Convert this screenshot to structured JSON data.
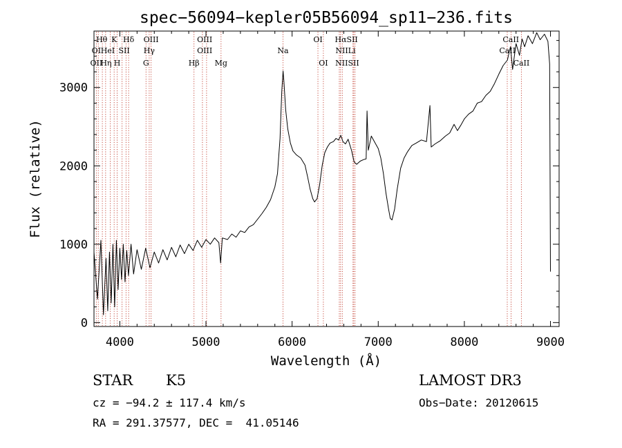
{
  "chart_data": {
    "type": "line",
    "title": "spec−56094−kepler05B56094_sp11−236.fits",
    "xlabel": "Wavelength (Å)",
    "ylabel": "Flux (relative)",
    "xlim": [
      3700,
      9100
    ],
    "ylim": [
      -50,
      3720
    ],
    "x_ticks": [
      4000,
      5000,
      6000,
      7000,
      8000,
      9000
    ],
    "y_ticks": [
      0,
      1000,
      2000,
      3000
    ],
    "series": [
      {
        "name": "spectrum",
        "color": "#000000",
        "points": [
          [
            3700,
            900
          ],
          [
            3740,
            300
          ],
          [
            3780,
            1050
          ],
          [
            3810,
            100
          ],
          [
            3840,
            820
          ],
          [
            3860,
            150
          ],
          [
            3880,
            900
          ],
          [
            3900,
            250
          ],
          [
            3920,
            1000
          ],
          [
            3940,
            200
          ],
          [
            3960,
            1050
          ],
          [
            3980,
            420
          ],
          [
            4000,
            950
          ],
          [
            4020,
            550
          ],
          [
            4040,
            1000
          ],
          [
            4060,
            520
          ],
          [
            4080,
            920
          ],
          [
            4100,
            600
          ],
          [
            4130,
            1000
          ],
          [
            4160,
            620
          ],
          [
            4200,
            930
          ],
          [
            4250,
            680
          ],
          [
            4300,
            950
          ],
          [
            4350,
            700
          ],
          [
            4400,
            900
          ],
          [
            4450,
            760
          ],
          [
            4500,
            930
          ],
          [
            4550,
            800
          ],
          [
            4600,
            960
          ],
          [
            4650,
            840
          ],
          [
            4700,
            990
          ],
          [
            4750,
            880
          ],
          [
            4800,
            1000
          ],
          [
            4850,
            920
          ],
          [
            4900,
            1050
          ],
          [
            4950,
            960
          ],
          [
            5000,
            1060
          ],
          [
            5050,
            1000
          ],
          [
            5100,
            1080
          ],
          [
            5150,
            1020
          ],
          [
            5170,
            760
          ],
          [
            5190,
            1080
          ],
          [
            5250,
            1060
          ],
          [
            5300,
            1130
          ],
          [
            5350,
            1090
          ],
          [
            5400,
            1170
          ],
          [
            5450,
            1150
          ],
          [
            5500,
            1220
          ],
          [
            5550,
            1250
          ],
          [
            5600,
            1320
          ],
          [
            5650,
            1390
          ],
          [
            5700,
            1470
          ],
          [
            5750,
            1570
          ],
          [
            5800,
            1730
          ],
          [
            5830,
            1900
          ],
          [
            5860,
            2350
          ],
          [
            5880,
            2950
          ],
          [
            5895,
            3210
          ],
          [
            5905,
            3080
          ],
          [
            5925,
            2720
          ],
          [
            5950,
            2470
          ],
          [
            5980,
            2290
          ],
          [
            6010,
            2190
          ],
          [
            6050,
            2140
          ],
          [
            6100,
            2100
          ],
          [
            6150,
            2010
          ],
          [
            6180,
            1860
          ],
          [
            6210,
            1700
          ],
          [
            6240,
            1580
          ],
          [
            6260,
            1540
          ],
          [
            6290,
            1580
          ],
          [
            6320,
            1760
          ],
          [
            6350,
            2010
          ],
          [
            6380,
            2170
          ],
          [
            6410,
            2240
          ],
          [
            6440,
            2290
          ],
          [
            6480,
            2310
          ],
          [
            6510,
            2350
          ],
          [
            6540,
            2330
          ],
          [
            6565,
            2390
          ],
          [
            6590,
            2310
          ],
          [
            6620,
            2280
          ],
          [
            6650,
            2340
          ],
          [
            6690,
            2200
          ],
          [
            6720,
            2050
          ],
          [
            6750,
            2020
          ],
          [
            6790,
            2060
          ],
          [
            6830,
            2080
          ],
          [
            6860,
            2090
          ],
          [
            6870,
            2700
          ],
          [
            6885,
            2200
          ],
          [
            6920,
            2380
          ],
          [
            6960,
            2300
          ],
          [
            7000,
            2220
          ],
          [
            7030,
            2100
          ],
          [
            7060,
            1900
          ],
          [
            7090,
            1650
          ],
          [
            7120,
            1450
          ],
          [
            7140,
            1330
          ],
          [
            7160,
            1310
          ],
          [
            7190,
            1450
          ],
          [
            7220,
            1700
          ],
          [
            7260,
            1970
          ],
          [
            7300,
            2100
          ],
          [
            7340,
            2180
          ],
          [
            7390,
            2260
          ],
          [
            7440,
            2290
          ],
          [
            7500,
            2330
          ],
          [
            7560,
            2310
          ],
          [
            7600,
            2770
          ],
          [
            7615,
            2240
          ],
          [
            7660,
            2280
          ],
          [
            7720,
            2320
          ],
          [
            7780,
            2380
          ],
          [
            7830,
            2420
          ],
          [
            7880,
            2530
          ],
          [
            7920,
            2450
          ],
          [
            7960,
            2520
          ],
          [
            8000,
            2600
          ],
          [
            8050,
            2660
          ],
          [
            8100,
            2700
          ],
          [
            8150,
            2800
          ],
          [
            8200,
            2820
          ],
          [
            8250,
            2900
          ],
          [
            8300,
            2950
          ],
          [
            8350,
            3050
          ],
          [
            8400,
            3170
          ],
          [
            8450,
            3280
          ],
          [
            8500,
            3350
          ],
          [
            8535,
            3520
          ],
          [
            8560,
            3230
          ],
          [
            8600,
            3560
          ],
          [
            8640,
            3410
          ],
          [
            8670,
            3620
          ],
          [
            8700,
            3520
          ],
          [
            8740,
            3660
          ],
          [
            8790,
            3560
          ],
          [
            8840,
            3700
          ],
          [
            8880,
            3610
          ],
          [
            8930,
            3680
          ],
          [
            8970,
            3590
          ],
          [
            8990,
            3300
          ],
          [
            9000,
            650
          ]
        ]
      }
    ],
    "lines": [
      {
        "wavelength": 3727,
        "label": "OII"
      },
      {
        "wavelength": 3750,
        "label": "OII"
      },
      {
        "wavelength": 3797,
        "label": "Hθ"
      },
      {
        "wavelength": 3835,
        "label": "He"
      },
      {
        "wavelength": 3889,
        "label": "η"
      },
      {
        "wavelength": 3934,
        "label": "K"
      },
      {
        "wavelength": 3969,
        "label": "H"
      },
      {
        "wavelength": 4026,
        "label": "HeI"
      },
      {
        "wavelength": 4072,
        "label": "SII"
      },
      {
        "wavelength": 4102,
        "label": "Hδ"
      },
      {
        "wavelength": 4304,
        "label": "G"
      },
      {
        "wavelength": 4341,
        "label": "Hγ"
      },
      {
        "wavelength": 4363,
        "label": "OIII"
      },
      {
        "wavelength": 4861,
        "label": "Hβ"
      },
      {
        "wavelength": 4959,
        "label": "OIII"
      },
      {
        "wavelength": 5007,
        "label": "OIII"
      },
      {
        "wavelength": 5175,
        "label": "Mg"
      },
      {
        "wavelength": 5894,
        "label": "Na"
      },
      {
        "wavelength": 6300,
        "label": "OI"
      },
      {
        "wavelength": 6363,
        "label": "OI"
      },
      {
        "wavelength": 6548,
        "label": "NII"
      },
      {
        "wavelength": 6563,
        "label": "Hα"
      },
      {
        "wavelength": 6583,
        "label": "NII"
      },
      {
        "wavelength": 6707,
        "label": "Li"
      },
      {
        "wavelength": 6716,
        "label": "SII"
      },
      {
        "wavelength": 6731,
        "label": "SII"
      },
      {
        "wavelength": 8498,
        "label": "CaII"
      },
      {
        "wavelength": 8542,
        "label": "CaII"
      },
      {
        "wavelength": 8662,
        "label": "CaII"
      }
    ],
    "line_labels": [
      {
        "text": "Hθ",
        "wavelength": 3790,
        "row": 1
      },
      {
        "text": "K",
        "wavelength": 3935,
        "row": 1
      },
      {
        "text": "Hδ",
        "wavelength": 4102,
        "row": 1
      },
      {
        "text": "OIII",
        "wavelength": 4363,
        "row": 1
      },
      {
        "text": "OIII",
        "wavelength": 4985,
        "row": 1
      },
      {
        "text": "OI",
        "wavelength": 6300,
        "row": 1
      },
      {
        "text": "HαSII",
        "wavelength": 6630,
        "row": 1
      },
      {
        "text": "CaII",
        "wavelength": 8540,
        "row": 1
      },
      {
        "text": "OI",
        "wavelength": 3727,
        "row": 2
      },
      {
        "text": "HeI",
        "wavelength": 3860,
        "row": 2
      },
      {
        "text": "SII",
        "wavelength": 4050,
        "row": 2
      },
      {
        "text": "Hγ",
        "wavelength": 4341,
        "row": 2
      },
      {
        "text": "OIII",
        "wavelength": 4985,
        "row": 2
      },
      {
        "text": "Na",
        "wavelength": 5894,
        "row": 2
      },
      {
        "text": "NIILi",
        "wavelength": 6620,
        "row": 2
      },
      {
        "text": "CaII",
        "wavelength": 8500,
        "row": 2
      },
      {
        "text": "OII",
        "wavelength": 3727,
        "row": 3
      },
      {
        "text": "Hη",
        "wavelength": 3840,
        "row": 3
      },
      {
        "text": "H",
        "wavelength": 3969,
        "row": 3
      },
      {
        "text": "G",
        "wavelength": 4304,
        "row": 3
      },
      {
        "text": "Hβ",
        "wavelength": 4861,
        "row": 3
      },
      {
        "text": "Mg",
        "wavelength": 5175,
        "row": 3
      },
      {
        "text": "OI",
        "wavelength": 6363,
        "row": 3
      },
      {
        "text": "NIISII",
        "wavelength": 6640,
        "row": 3
      },
      {
        "text": "CaII",
        "wavelength": 8662,
        "row": 3
      }
    ]
  },
  "info": {
    "class": "STAR",
    "subclass": "K5",
    "survey": "LAMOST DR3",
    "velocity": "cz = −94.2 ± 117.4 km/s",
    "obs_date": "Obs−Date: 20120615",
    "radec": "RA = 291.37577, DEC =  41.05146"
  }
}
